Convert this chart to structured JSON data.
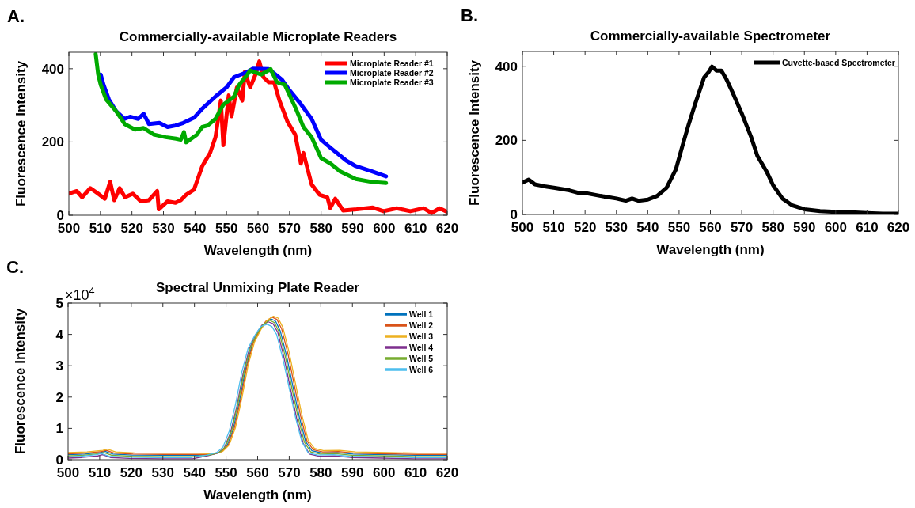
{
  "chart_data": [
    {
      "type": "line",
      "title": "Commercially-available Microplate Readers",
      "xlabel": "Wavelength (nm)",
      "ylabel": "Fluorescence Intensity",
      "annotations": [
        "A."
      ],
      "xlim": [
        500,
        620
      ],
      "xticks": [
        500,
        510,
        520,
        530,
        540,
        550,
        560,
        570,
        580,
        590,
        600,
        610,
        620
      ],
      "ylim": [
        0,
        445
      ],
      "yticks": [
        0,
        200,
        400
      ],
      "grid": false,
      "legend": "top right",
      "marker": "none",
      "line_style": "solid",
      "series": [
        {
          "name": "Microplate Reader #1",
          "color": "#ff0000",
          "x": [
            500,
            502.5,
            504.2,
            506.8,
            509.3,
            511.4,
            513.1,
            514.4,
            516.1,
            517.8,
            520.3,
            522.8,
            525.4,
            528,
            528.5,
            531.3,
            533.8,
            535.5,
            537.2,
            539.7,
            542.3,
            544.8,
            546.5,
            548.2,
            549,
            550.7,
            551.6,
            553.3,
            555,
            555.8,
            557.5,
            559.2,
            560.4,
            561.7,
            563.4,
            565.1,
            566.8,
            569.3,
            571.8,
            573.6,
            574.4,
            577,
            579.5,
            582,
            582.9,
            584.5,
            587,
            591.3,
            596.4,
            599.8,
            604,
            608.3,
            612.5,
            615,
            617.6,
            620
          ],
          "values": [
            59,
            66,
            49,
            74,
            59,
            45,
            91,
            41,
            74,
            49,
            59,
            38,
            41,
            66,
            16,
            38,
            34,
            41,
            56,
            70,
            134,
            170,
            213,
            313,
            191,
            327,
            270,
            349,
            313,
            391,
            349,
            384,
            420,
            377,
            363,
            363,
            313,
            256,
            220,
            141,
            170,
            84,
            56,
            49,
            20,
            45,
            13,
            16,
            21,
            11,
            19,
            11,
            19,
            6,
            19,
            9
          ]
        },
        {
          "name": "Microplate Reader #2",
          "color": "#0000ff",
          "x": [
            510.1,
            511,
            512.7,
            515,
            517.7,
            519.4,
            522,
            523.7,
            525.4,
            528.7,
            531.3,
            533.8,
            536.3,
            539.7,
            542.3,
            546.5,
            550,
            552.4,
            556.6,
            558.3,
            563.4,
            567.6,
            570,
            573.7,
            577,
            580,
            583,
            588,
            591,
            596,
            600.6
          ],
          "values": [
            384,
            356,
            316,
            284,
            263,
            269,
            263,
            277,
            249,
            252,
            241,
            245,
            252,
            266,
            291,
            324,
            349,
            377,
            391,
            400,
            399,
            370,
            341,
            302,
            263,
            206,
            184,
            149,
            134,
            120,
            106
          ]
        },
        {
          "name": "Microplate Reader #3",
          "color": "#00aa00",
          "x": [
            508.5,
            509.3,
            510.1,
            511.8,
            515,
            517.7,
            521,
            523.7,
            527,
            530.7,
            534,
            535.5,
            536.5,
            537.2,
            540.6,
            542.3,
            544,
            546.5,
            549,
            552.4,
            554,
            556.6,
            557.5,
            561,
            564,
            566,
            568.5,
            572,
            574.4,
            577,
            580,
            583,
            586,
            591,
            596,
            600.6
          ],
          "values": [
            440,
            384,
            356,
            316,
            284,
            249,
            234,
            238,
            220,
            213,
            209,
            206,
            227,
            199,
            220,
            241,
            245,
            263,
            302,
            324,
            356,
            384,
            395,
            384,
            399,
            363,
            356,
            291,
            241,
            213,
            156,
            141,
            120,
            99,
            91,
            88
          ]
        }
      ]
    },
    {
      "type": "line",
      "title": "Commercially-available Spectrometer",
      "xlabel": "Wavelength (nm)",
      "ylabel": "Fluorescence Intensity",
      "annotations": [
        "B."
      ],
      "xlim": [
        500,
        620
      ],
      "xticks": [
        500,
        510,
        520,
        530,
        540,
        550,
        560,
        570,
        580,
        590,
        600,
        610,
        620
      ],
      "ylim": [
        0,
        440
      ],
      "yticks": [
        0,
        200,
        400
      ],
      "grid": false,
      "legend": "top right",
      "marker": "none",
      "line_style": "solid",
      "series": [
        {
          "name": "Cuvette-based Spectrometer",
          "color": "#000000",
          "x": [
            500,
            502,
            504,
            507,
            510,
            515,
            518,
            520,
            525,
            530,
            533,
            535,
            537,
            540,
            543,
            546,
            549,
            551,
            553,
            555,
            557,
            558,
            559.5,
            560.5,
            562,
            563.5,
            565,
            567,
            570,
            573,
            575,
            578,
            580,
            583,
            586,
            590,
            595,
            600,
            605,
            610,
            615,
            620
          ],
          "values": [
            86,
            94,
            81,
            76,
            72,
            65,
            58,
            58,
            50,
            43,
            37,
            43,
            37,
            40,
            50,
            72,
            122,
            183,
            241,
            295,
            345,
            370,
            385,
            399,
            388,
            388,
            367,
            331,
            273,
            209,
            158,
            115,
            79,
            43,
            25,
            14,
            9,
            7,
            6,
            4,
            2,
            2
          ]
        }
      ]
    },
    {
      "type": "line",
      "title": "Spectral Unmixing Plate Reader",
      "xlabel": "Wavelength (nm)",
      "ylabel": "Fluorescence Intensity",
      "annotations": [
        "C.",
        "×10$^{4}$"
      ],
      "xlim": [
        500,
        620
      ],
      "xticks": [
        500,
        510,
        520,
        530,
        540,
        550,
        560,
        570,
        580,
        590,
        600,
        610,
        620
      ],
      "ylim": [
        0,
        5
      ],
      "yticks": [
        0,
        1,
        2,
        3,
        4,
        5
      ],
      "grid": false,
      "legend": "top right",
      "marker": "none",
      "line_style": "solid",
      "series": [
        {
          "name": "Well 1",
          "color": "#0072bd",
          "x": [
            500,
            505.2,
            510.2,
            511.7,
            514.2,
            520.2,
            530.2,
            540.2,
            545.2,
            548.2,
            550.2,
            552.2,
            554.2,
            556.2,
            558.2,
            560.2,
            562.2,
            564.2,
            565.7,
            567.2,
            569.2,
            571.2,
            573.2,
            575.2,
            577.2,
            580.2,
            585.2,
            590.2,
            600.2,
            610.2,
            620
          ],
          "values": [
            0.16,
            0.18,
            0.23,
            0.27,
            0.18,
            0.15,
            0.14,
            0.14,
            0.16,
            0.24,
            0.42,
            0.95,
            1.85,
            2.9,
            3.65,
            4.05,
            4.35,
            4.5,
            4.42,
            4.1,
            3.3,
            2.32,
            1.36,
            0.58,
            0.29,
            0.22,
            0.23,
            0.18,
            0.16,
            0.14,
            0.14
          ]
        },
        {
          "name": "Well 2",
          "color": "#d95319",
          "x": [
            500,
            505.6,
            510.6,
            512.1,
            514.6,
            520.6,
            530.6,
            540.6,
            545.6,
            548.6,
            550.6,
            552.6,
            554.6,
            556.6,
            558.6,
            560.6,
            562.6,
            564.6,
            566.1,
            567.6,
            569.6,
            571.6,
            573.6,
            575.6,
            577.6,
            580.6,
            585.6,
            590.6,
            600.6,
            610.6,
            620
          ],
          "values": [
            0.19,
            0.21,
            0.26,
            0.3,
            0.21,
            0.18,
            0.17,
            0.17,
            0.17,
            0.26,
            0.45,
            1,
            1.92,
            2.98,
            3.72,
            4.12,
            4.42,
            4.55,
            4.48,
            4.18,
            3.38,
            2.38,
            1.4,
            0.6,
            0.32,
            0.25,
            0.26,
            0.21,
            0.19,
            0.17,
            0.17
          ]
        },
        {
          "name": "Well 3",
          "color": "#edb120",
          "x": [
            500,
            506,
            511,
            512.5,
            515,
            521,
            531,
            541,
            546,
            549,
            551,
            553,
            555,
            557,
            559,
            561,
            563,
            565,
            566.5,
            568,
            570,
            572,
            574,
            576,
            578,
            581,
            586,
            591,
            601,
            611,
            620
          ],
          "values": [
            0.23,
            0.25,
            0.3,
            0.34,
            0.25,
            0.22,
            0.21,
            0.21,
            0.18,
            0.27,
            0.47,
            1.03,
            1.96,
            3.02,
            3.75,
            4.15,
            4.45,
            4.58,
            4.52,
            4.22,
            3.42,
            2.42,
            1.43,
            0.62,
            0.36,
            0.29,
            0.3,
            0.25,
            0.23,
            0.21,
            0.21
          ]
        },
        {
          "name": "Well 4",
          "color": "#7e2f8e",
          "x": [
            500,
            504.4,
            509.4,
            510.9,
            513.4,
            519.4,
            529.4,
            539.4,
            544.4,
            547.4,
            549.4,
            551.4,
            553.4,
            555.4,
            557.4,
            559.4,
            561.4,
            563.4,
            564.9,
            566.4,
            568.4,
            570.4,
            572.4,
            574.4,
            576.4,
            579.4,
            584.4,
            589.4,
            599.4,
            609.4,
            620
          ],
          "values": [
            0.05,
            0.07,
            0.12,
            0.16,
            0.07,
            0.04,
            0.03,
            0.03,
            0.13,
            0.21,
            0.37,
            0.86,
            1.7,
            2.75,
            3.55,
            4,
            4.3,
            4.4,
            4.34,
            4.06,
            3.24,
            2.26,
            1.3,
            0.53,
            0.18,
            0.11,
            0.12,
            0.07,
            0.05,
            0.03,
            0.03
          ]
        },
        {
          "name": "Well 5",
          "color": "#77ac30",
          "x": [
            500,
            504.8,
            509.8,
            511.3,
            513.8,
            519.8,
            529.8,
            539.8,
            544.8,
            547.8,
            549.8,
            551.8,
            553.8,
            555.8,
            557.8,
            559.8,
            561.8,
            563.8,
            565.3,
            566.8,
            568.8,
            570.8,
            572.8,
            574.8,
            576.8,
            579.8,
            584.8,
            589.8,
            599.8,
            609.8,
            620
          ],
          "values": [
            0.12,
            0.14,
            0.19,
            0.23,
            0.14,
            0.11,
            0.1,
            0.1,
            0.15,
            0.23,
            0.41,
            0.93,
            1.8,
            2.85,
            3.6,
            4.02,
            4.32,
            4.45,
            4.38,
            4.08,
            3.28,
            2.3,
            1.35,
            0.56,
            0.25,
            0.18,
            0.19,
            0.14,
            0.12,
            0.1,
            0.1
          ]
        },
        {
          "name": "Well 6",
          "color": "#4dbeee",
          "x": [
            500,
            504,
            509,
            510.5,
            513,
            519,
            529,
            539,
            544,
            547,
            549,
            551,
            553,
            555,
            557,
            559,
            561,
            563,
            564.5,
            566,
            568,
            570,
            572,
            574,
            576,
            579,
            584,
            589,
            599,
            609,
            620
          ],
          "values": [
            0.09,
            0.11,
            0.16,
            0.2,
            0.11,
            0.08,
            0.07,
            0.07,
            0.15,
            0.23,
            0.4,
            0.91,
            1.77,
            2.8,
            3.56,
            3.95,
            4.25,
            4.32,
            4.25,
            4,
            3.22,
            2.28,
            1.34,
            0.57,
            0.22,
            0.15,
            0.16,
            0.11,
            0.09,
            0.07,
            0.07
          ]
        }
      ]
    }
  ]
}
